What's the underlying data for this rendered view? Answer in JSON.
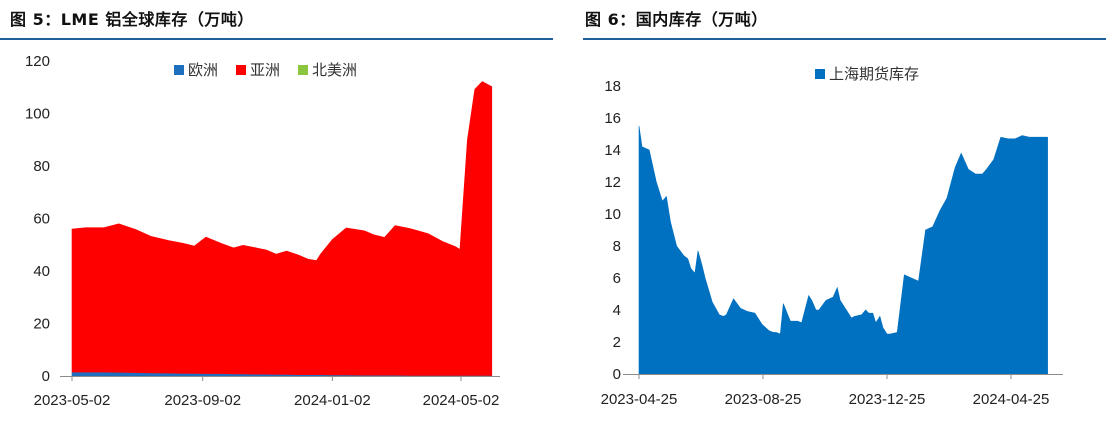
{
  "figures": [
    {
      "title": "图 5：LME 铝全球库存（万吨）",
      "chart_data": {
        "type": "area",
        "stacked": true,
        "title": "",
        "xlabel": "",
        "ylabel": "",
        "ylim": [
          0,
          120
        ],
        "yticks": [
          "0",
          "20",
          "40",
          "60",
          "80",
          "100",
          "120"
        ],
        "xticks": [
          "2023-05-02",
          "2023-09-02",
          "2024-01-02",
          "2024-05-02"
        ],
        "grid": false,
        "legend_position": "top-center",
        "x": [
          "2023-05-02",
          "2023-05-15",
          "2023-06-01",
          "2023-06-15",
          "2023-07-01",
          "2023-07-15",
          "2023-08-01",
          "2023-08-15",
          "2023-08-25",
          "2023-09-05",
          "2023-09-20",
          "2023-10-01",
          "2023-10-10",
          "2023-10-20",
          "2023-11-01",
          "2023-11-10",
          "2023-11-20",
          "2023-12-01",
          "2023-12-10",
          "2023-12-18",
          "2023-12-22",
          "2024-01-02",
          "2024-01-15",
          "2024-02-01",
          "2024-02-10",
          "2024-02-20",
          "2024-03-01",
          "2024-03-15",
          "2024-04-01",
          "2024-04-15",
          "2024-04-27",
          "2024-05-01",
          "2024-05-08",
          "2024-05-15",
          "2024-05-22",
          "2024-05-31"
        ],
        "series": [
          {
            "name": "欧洲",
            "color": "#1f6fbf",
            "values": [
              1.5,
              1.5,
              1.5,
              1.4,
              1.3,
              1.2,
              1.1,
              1.0,
              1.0,
              0.9,
              0.9,
              0.8,
              0.8,
              0.7,
              0.7,
              0.6,
              0.6,
              0.5,
              0.5,
              0.5,
              0.5,
              0.4,
              0.4,
              0.3,
              0.3,
              0.3,
              0.3,
              0.2,
              0.2,
              0.2,
              0.2,
              0.2,
              0.2,
              0.2,
              0.2,
              0.2
            ]
          },
          {
            "name": "亚洲",
            "color": "#ff0000",
            "values": [
              54.5,
              55.0,
              55.0,
              56.6,
              54.5,
              52.0,
              50.5,
              49.5,
              48.5,
              52.0,
              49.5,
              48.0,
              49.0,
              48.3,
              47.3,
              45.8,
              47.0,
              45.6,
              44.0,
              43.5,
              46.0,
              51.6,
              56.0,
              55.0,
              53.5,
              52.5,
              57.0,
              56.0,
              54.0,
              51.0,
              49.0,
              48.0,
              89.8,
              109.0,
              112.0,
              110.0
            ]
          },
          {
            "name": "北美洲",
            "color": "#8cc63f",
            "values": [
              0,
              0,
              0,
              0,
              0,
              0,
              0,
              0,
              0,
              0,
              0,
              0,
              0,
              0,
              0,
              0,
              0,
              0,
              0,
              0,
              0,
              0,
              0,
              0,
              0,
              0,
              0,
              0,
              0,
              0,
              0,
              0,
              0,
              0,
              0,
              0
            ]
          }
        ]
      }
    },
    {
      "title": "图 6：国内库存（万吨）",
      "chart_data": {
        "type": "area",
        "title": "",
        "xlabel": "",
        "ylabel": "",
        "ylim": [
          0,
          18
        ],
        "yticks": [
          "0",
          "2",
          "4",
          "6",
          "8",
          "10",
          "12",
          "14",
          "16",
          "18"
        ],
        "xticks": [
          "2023-04-25",
          "2023-08-25",
          "2023-12-25",
          "2024-04-25"
        ],
        "grid": false,
        "legend_position": "top-center",
        "x": [
          "2023-04-25",
          "2023-04-28",
          "2023-05-05",
          "2023-05-12",
          "2023-05-18",
          "2023-05-22",
          "2023-05-26",
          "2023-06-01",
          "2023-06-08",
          "2023-06-12",
          "2023-06-15",
          "2023-06-19",
          "2023-06-22",
          "2023-06-26",
          "2023-06-29",
          "2023-07-06",
          "2023-07-13",
          "2023-07-17",
          "2023-07-20",
          "2023-07-27",
          "2023-08-03",
          "2023-08-10",
          "2023-08-17",
          "2023-08-24",
          "2023-08-31",
          "2023-09-04",
          "2023-09-07",
          "2023-09-11",
          "2023-09-14",
          "2023-09-21",
          "2023-09-28",
          "2023-10-02",
          "2023-10-09",
          "2023-10-12",
          "2023-10-16",
          "2023-10-19",
          "2023-10-26",
          "2023-11-02",
          "2023-11-06",
          "2023-11-09",
          "2023-11-16",
          "2023-11-20",
          "2023-11-23",
          "2023-11-30",
          "2023-12-04",
          "2023-12-07",
          "2023-12-11",
          "2023-12-14",
          "2023-12-18",
          "2023-12-21",
          "2023-12-25",
          "2023-12-28",
          "2024-01-04",
          "2024-01-11",
          "2024-01-18",
          "2024-01-25",
          "2024-02-01",
          "2024-02-08",
          "2024-02-15",
          "2024-02-22",
          "2024-03-01",
          "2024-03-07",
          "2024-03-14",
          "2024-03-21",
          "2024-03-28",
          "2024-04-01",
          "2024-04-08",
          "2024-04-15",
          "2024-04-22",
          "2024-04-29",
          "2024-05-06",
          "2024-05-13",
          "2024-05-20",
          "2024-05-27",
          "2024-05-31"
        ],
        "series": [
          {
            "name": "上海期货库存",
            "color": "#0070c0",
            "values": [
              15.5,
              14.2,
              14.0,
              12.0,
              10.8,
              11.1,
              9.5,
              8.0,
              7.4,
              7.2,
              6.6,
              6.3,
              7.7,
              6.8,
              6.0,
              4.5,
              3.7,
              3.6,
              3.7,
              4.7,
              4.1,
              3.9,
              3.8,
              3.1,
              2.7,
              2.6,
              2.6,
              2.5,
              4.4,
              3.3,
              3.3,
              3.2,
              4.9,
              4.6,
              4.0,
              4.0,
              4.6,
              4.8,
              5.4,
              4.6,
              3.9,
              3.5,
              3.6,
              3.7,
              4.0,
              3.8,
              3.8,
              3.2,
              3.6,
              2.9,
              2.5,
              2.5,
              2.6,
              6.2,
              6.0,
              5.8,
              9.0,
              9.2,
              10.2,
              11.0,
              12.9,
              13.8,
              12.8,
              12.5,
              12.5,
              12.8,
              13.4,
              14.8,
              14.7,
              14.7,
              14.9,
              14.8,
              14.8,
              14.8,
              14.8
            ]
          }
        ]
      }
    }
  ]
}
